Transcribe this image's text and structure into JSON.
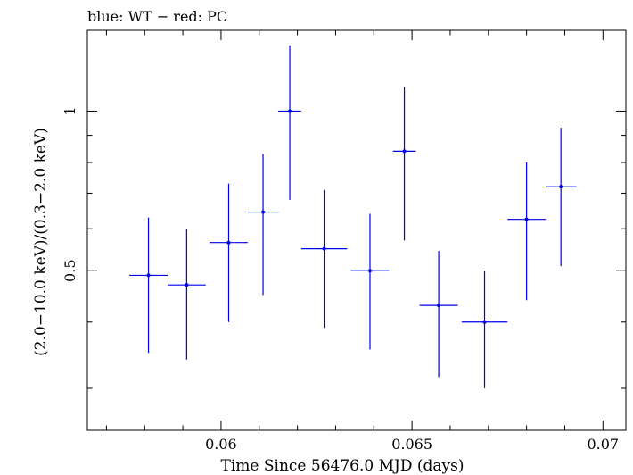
{
  "chart_data": {
    "type": "scatter",
    "title": "blue: WT − red: PC",
    "xlabel": "Time Since 56476.0 MJD (days)",
    "ylabel": "(2.0−10.0 keV)/(0.3−2.0 keV)",
    "xlim": [
      0.0565,
      0.0706
    ],
    "ylim": [
      0.25,
      1.42
    ],
    "yscale": "log",
    "x_ticks": [
      {
        "value": 0.06,
        "label": "0.06"
      },
      {
        "value": 0.065,
        "label": "0.065"
      },
      {
        "value": 0.07,
        "label": "0.07"
      }
    ],
    "y_ticks": [
      {
        "value": 0.5,
        "label": "0.5"
      },
      {
        "value": 1,
        "label": "1"
      }
    ],
    "series": [
      {
        "name": "WT",
        "color": "#0000ee",
        "points": [
          {
            "x": 0.0581,
            "xerr": 0.0005,
            "y": 0.49,
            "ylo": 0.35,
            "yhi": 0.63
          },
          {
            "x": 0.0591,
            "xerr": 0.0005,
            "y": 0.47,
            "ylo": 0.34,
            "yhi": 0.6
          },
          {
            "x": 0.0602,
            "xerr": 0.0005,
            "y": 0.565,
            "ylo": 0.4,
            "yhi": 0.73
          },
          {
            "x": 0.0611,
            "xerr": 0.0004,
            "y": 0.645,
            "ylo": 0.45,
            "yhi": 0.83
          },
          {
            "x": 0.0618,
            "xerr": 0.0003,
            "y": 1.0,
            "ylo": 0.68,
            "yhi": 1.33
          },
          {
            "x": 0.0627,
            "xerr": 0.0006,
            "y": 0.55,
            "ylo": 0.39,
            "yhi": 0.71
          },
          {
            "x": 0.0639,
            "xerr": 0.0005,
            "y": 0.5,
            "ylo": 0.355,
            "yhi": 0.64
          },
          {
            "x": 0.0648,
            "xerr": 0.0003,
            "y": 0.84,
            "ylo": 0.57,
            "yhi": 1.11
          },
          {
            "x": 0.0657,
            "xerr": 0.0005,
            "y": 0.43,
            "ylo": 0.315,
            "yhi": 0.545
          },
          {
            "x": 0.0669,
            "xerr": 0.0006,
            "y": 0.4,
            "ylo": 0.3,
            "yhi": 0.5
          },
          {
            "x": 0.068,
            "xerr": 0.0005,
            "y": 0.625,
            "ylo": 0.44,
            "yhi": 0.8
          },
          {
            "x": 0.0689,
            "xerr": 0.0004,
            "y": 0.72,
            "ylo": 0.51,
            "yhi": 0.93
          }
        ]
      }
    ]
  }
}
